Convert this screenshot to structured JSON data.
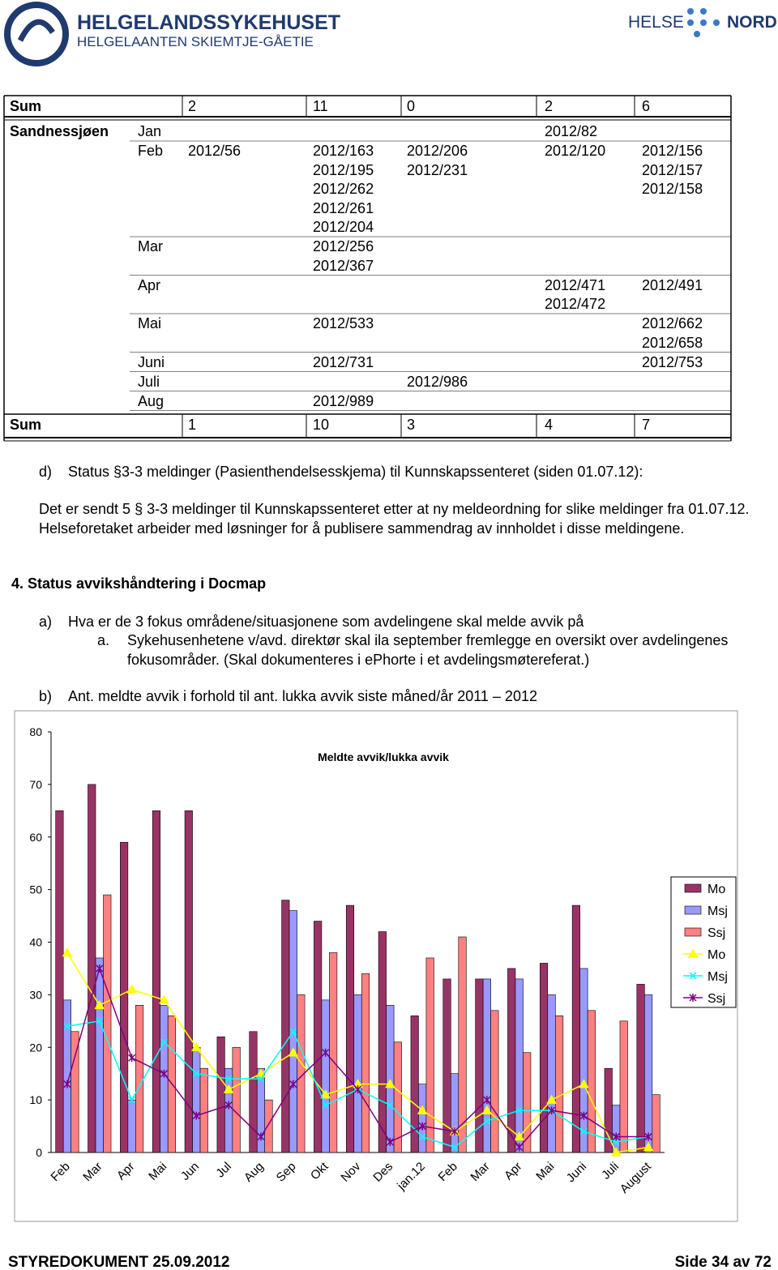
{
  "header": {
    "org": "HELGELANDSSYKEHUSET",
    "org_sub": "HELGELAANTEN SKIEMTJE-GÅETIE",
    "brand_left": "HELSE",
    "brand_right": "NORD"
  },
  "table": {
    "sum_top": [
      "Sum",
      "2",
      "11",
      "0",
      "2",
      "6"
    ],
    "section": "Sandnessjøen",
    "rows": [
      {
        "month": "Jan",
        "cells": [
          [],
          [],
          [],
          [
            "2012/82"
          ],
          []
        ]
      },
      {
        "month": "Feb",
        "cells": [
          [
            "2012/56"
          ],
          [
            "2012/163",
            "2012/195",
            "2012/262",
            "2012/261",
            "2012/204"
          ],
          [
            "2012/206",
            "2012/231"
          ],
          [
            "2012/120"
          ],
          [
            "2012/156",
            "2012/157",
            "2012/158"
          ]
        ]
      },
      {
        "month": "Mar",
        "cells": [
          [],
          [
            "2012/256",
            "2012/367"
          ],
          [],
          [],
          []
        ]
      },
      {
        "month": "Apr",
        "cells": [
          [],
          [],
          [],
          [
            "2012/471",
            "2012/472"
          ],
          [
            "2012/491"
          ]
        ]
      },
      {
        "month": "Mai",
        "cells": [
          [],
          [
            "2012/533"
          ],
          [],
          [],
          [
            "2012/662",
            "2012/658"
          ]
        ]
      },
      {
        "month": "Juni",
        "cells": [
          [],
          [
            "2012/731"
          ],
          [],
          [],
          [
            "2012/753"
          ]
        ]
      },
      {
        "month": "Juli",
        "cells": [
          [],
          [],
          [
            "2012/986"
          ],
          [],
          []
        ]
      },
      {
        "month": "Aug",
        "cells": [
          [],
          [
            "2012/989"
          ],
          [],
          [],
          []
        ]
      }
    ],
    "sum_bottom": [
      "Sum",
      "1",
      "10",
      "3",
      "4",
      "7"
    ]
  },
  "text": {
    "d_label": "d)",
    "d_text": "Status §3-3 meldinger (Pasienthendelsesskjema) til Kunnskapssenteret (siden 01.07.12):",
    "paragraph": "Det er sendt 5 § 3-3 meldinger til Kunnskapssenteret etter at ny meldeordning for slike meldinger fra 01.07.12. Helseforetaket arbeider med løsninger for å publisere sammendrag av innholdet i disse meldingene.",
    "heading": "4. Status avvikshåndtering i Docmap",
    "a_label": "a)",
    "a_text": "Hva er de 3 fokus områdene/situasjonene som avdelingene skal melde avvik på",
    "aa_label": "a.",
    "aa_text": "Sykehusenhetene v/avd. direktør skal ila september fremlegge en oversikt over avdelingenes fokusområder. (Skal dokumenteres i ePhorte i et avdelingsmøtereferat.)",
    "b_label": "b)",
    "b_text": "Ant. meldte avvik i forhold til ant. lukka avvik siste måned/år 2011 – 2012"
  },
  "chart_data": {
    "type": "bar",
    "title": "Meldte avvik/lukka avvik",
    "categories": [
      "Feb",
      "Mar",
      "Apr",
      "Mai",
      "Jun",
      "Jul",
      "Aug",
      "Sep",
      "Okt",
      "Nov",
      "Des",
      "jan.12",
      "Feb",
      "Mar",
      "Apr",
      "Mai",
      "Juni",
      "Juli",
      "August"
    ],
    "ylim": [
      0,
      80
    ],
    "yticks": [
      0,
      10,
      20,
      30,
      40,
      50,
      60,
      70,
      80
    ],
    "legend": "right",
    "series": [
      {
        "name": "Mo",
        "type": "bar",
        "color": "#993366",
        "values": [
          65,
          70,
          59,
          65,
          65,
          22,
          23,
          48,
          44,
          47,
          42,
          26,
          33,
          33,
          35,
          36,
          47,
          16,
          32
        ]
      },
      {
        "name": "Msj",
        "type": "bar",
        "color": "#9999ff",
        "values": [
          29,
          37,
          10,
          28,
          20,
          16,
          16,
          46,
          29,
          30,
          28,
          13,
          15,
          33,
          33,
          30,
          35,
          9,
          30
        ]
      },
      {
        "name": "Ssj",
        "type": "bar",
        "color": "#ff8080",
        "values": [
          23,
          49,
          28,
          26,
          16,
          20,
          10,
          30,
          38,
          34,
          21,
          37,
          41,
          27,
          19,
          26,
          27,
          25,
          11
        ]
      },
      {
        "name": "Mo",
        "type": "line",
        "marker": "triangle",
        "color": "#ffff00",
        "values": [
          38,
          28,
          31,
          29,
          20,
          12,
          15,
          19,
          11,
          13,
          13,
          8,
          4,
          8,
          3,
          10,
          13,
          0,
          1
        ]
      },
      {
        "name": "Msj",
        "type": "line",
        "marker": "x",
        "color": "#00ffff",
        "values": [
          24,
          25,
          10,
          21,
          15,
          14,
          14,
          23,
          9,
          12,
          9,
          3,
          1,
          6,
          8,
          8,
          4,
          2,
          3
        ]
      },
      {
        "name": "Ssj",
        "type": "line",
        "marker": "star",
        "color": "#800080",
        "values": [
          13,
          35,
          18,
          15,
          7,
          9,
          3,
          13,
          19,
          12,
          2,
          5,
          4,
          10,
          1,
          8,
          7,
          3,
          3
        ]
      }
    ]
  },
  "footer": {
    "left": "STYREDOKUMENT 25.09.2012",
    "right": "Side 34 av 72"
  }
}
